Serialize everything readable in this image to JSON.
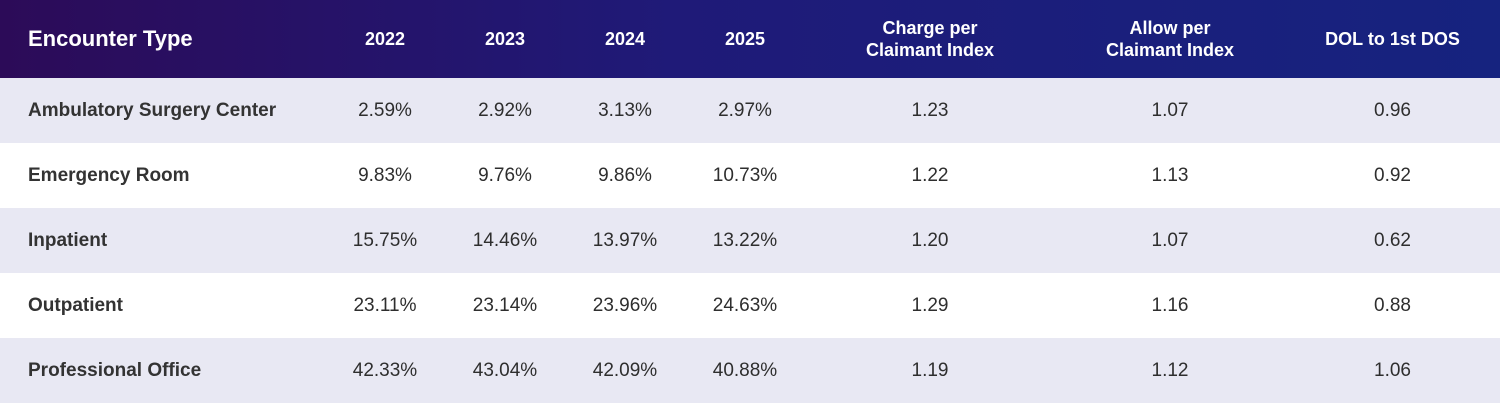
{
  "headers": {
    "encounter_type": "Encounter Type",
    "y2022": "2022",
    "y2023": "2023",
    "y2024": "2024",
    "y2025": "2025",
    "charge_line1": "Charge per",
    "charge_line2": "Claimant Index",
    "allow_line1": "Allow per",
    "allow_line2": "Claimant Index",
    "dol": "DOL to 1st DOS"
  },
  "rows": [
    {
      "type": "Ambulatory Surgery Center",
      "y2022": "2.59%",
      "y2023": "2.92%",
      "y2024": "3.13%",
      "y2025": "2.97%",
      "charge": "1.23",
      "allow": "1.07",
      "dol": "0.96"
    },
    {
      "type": "Emergency Room",
      "y2022": "9.83%",
      "y2023": "9.76%",
      "y2024": "9.86%",
      "y2025": "10.73%",
      "charge": "1.22",
      "allow": "1.13",
      "dol": "0.92"
    },
    {
      "type": "Inpatient",
      "y2022": "15.75%",
      "y2023": "14.46%",
      "y2024": "13.97%",
      "y2025": "13.22%",
      "charge": "1.20",
      "allow": "1.07",
      "dol": "0.62"
    },
    {
      "type": "Outpatient",
      "y2022": "23.11%",
      "y2023": "23.14%",
      "y2024": "23.96%",
      "y2025": "24.63%",
      "charge": "1.29",
      "allow": "1.16",
      "dol": "0.88"
    },
    {
      "type": "Professional Office",
      "y2022": "42.33%",
      "y2023": "43.04%",
      "y2024": "42.09%",
      "y2025": "40.88%",
      "charge": "1.19",
      "allow": "1.12",
      "dol": "1.06"
    }
  ],
  "colors": {
    "header_start": "#2c0b58",
    "header_end": "#16237f",
    "row_shaded": "#e8e8f3",
    "row_plain": "#ffffff"
  }
}
